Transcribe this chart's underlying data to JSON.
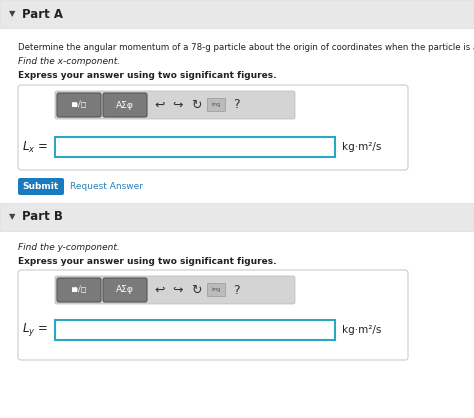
{
  "white": "#ffffff",
  "light_gray_bg": "#f0f0f0",
  "header_bg": "#e8e8e8",
  "part_a_header": "Part A",
  "part_b_header": "Part B",
  "description": "Determine the angular momentum of a 78-g particle about the origin of coordinates when the particle is a",
  "find_x": "Find the x-component.",
  "find_y": "Find the y-component.",
  "sig_figs": "Express your answer using two significant figures.",
  "lx_label": "$L_x$ =",
  "ly_label": "$L_y$ =",
  "units": "kg·m²/s",
  "submit_label": "Submit",
  "request_label": "Request Answer",
  "submit_color": "#1a7abf",
  "request_color": "#2980b9",
  "input_border": "#29a8c4",
  "input_bg": "#ffffff",
  "toolbar_row_bg": "#d4d4d4",
  "btn_bg": "#7a7a7a",
  "btn_border": "#555555",
  "text_dark": "#222222",
  "triangle_color": "#444444",
  "border_gray": "#cccccc",
  "img_btn_bg": "#bbbbbb"
}
